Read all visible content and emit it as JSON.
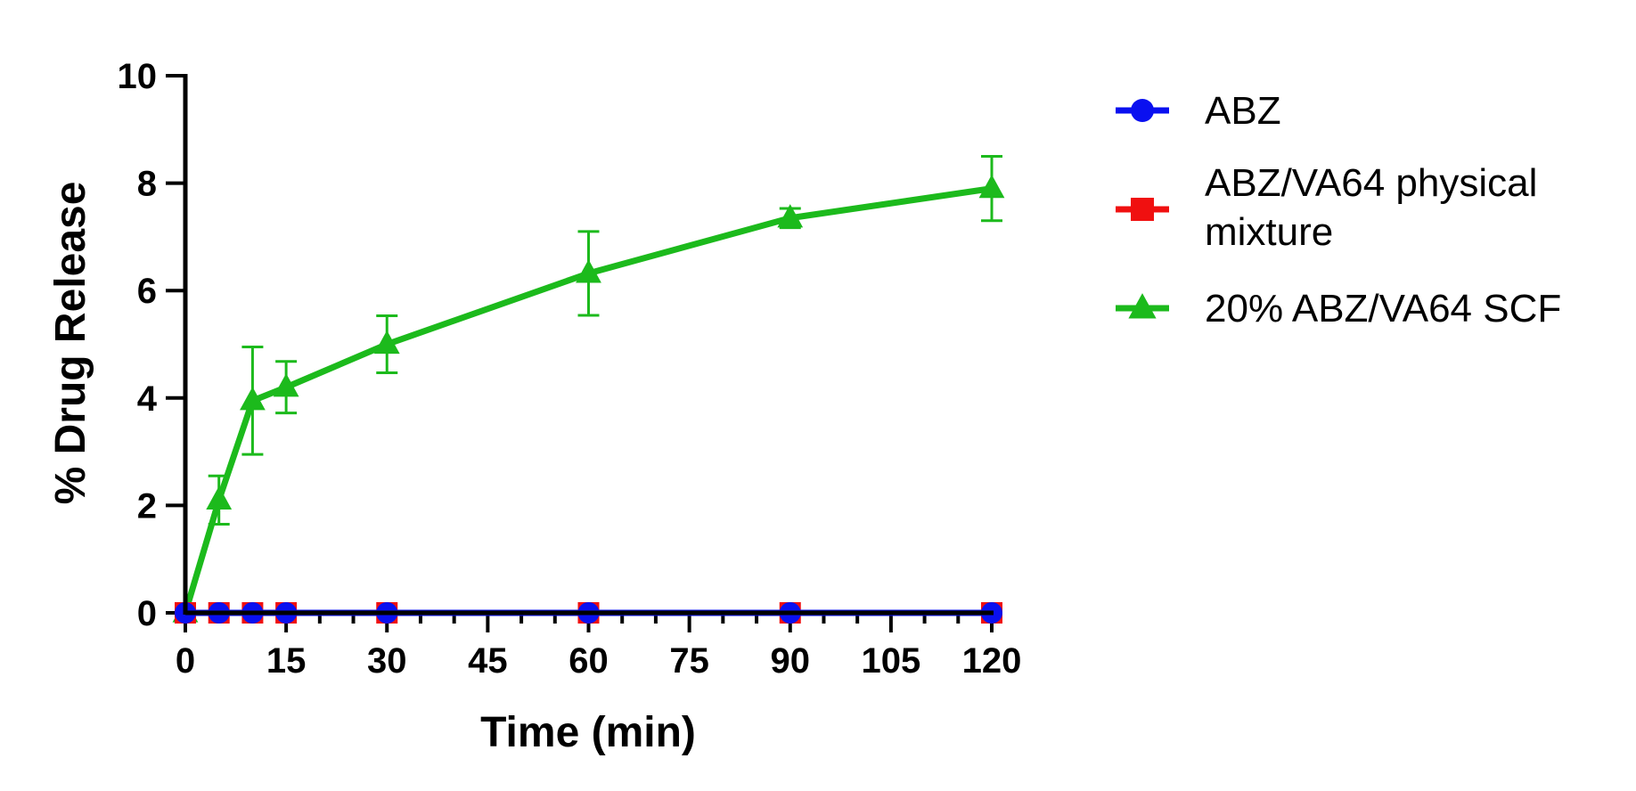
{
  "chart_data": {
    "type": "line",
    "xlabel": "Time (min)",
    "ylabel": "% Drug Release",
    "xlim": [
      0,
      120
    ],
    "ylim": [
      0,
      10
    ],
    "x_ticks": [
      0,
      15,
      30,
      45,
      60,
      75,
      90,
      105,
      120
    ],
    "x_tick_labels": [
      "0",
      "15",
      "30",
      "45",
      "60",
      "75",
      "90",
      "105",
      "120"
    ],
    "y_ticks": [
      0,
      2,
      4,
      6,
      8,
      10
    ],
    "y_tick_labels": [
      "0",
      "2",
      "4",
      "6",
      "8",
      "10"
    ],
    "grid": false,
    "legend_position": "right",
    "series": [
      {
        "name": "ABZ",
        "color": "#0a10f0",
        "marker": "circle",
        "x": [
          0,
          5,
          10,
          15,
          30,
          60,
          90,
          120
        ],
        "y": [
          0,
          0,
          0,
          0,
          0,
          0,
          0,
          0
        ],
        "error": [
          0,
          0,
          0,
          0,
          0,
          0,
          0,
          0
        ]
      },
      {
        "name": "ABZ/VA64 physical mixture",
        "name_lines": [
          "ABZ/VA64 physical",
          "mixture"
        ],
        "color": "#f01010",
        "marker": "square",
        "x": [
          0,
          5,
          10,
          15,
          30,
          60,
          90,
          120
        ],
        "y": [
          0,
          0,
          0,
          0,
          0,
          0,
          0,
          0
        ],
        "error": [
          0,
          0,
          0,
          0,
          0,
          0,
          0,
          0
        ]
      },
      {
        "name": "20% ABZ/VA64 SCF",
        "color": "#1cba1c",
        "marker": "triangle",
        "x": [
          0,
          5,
          10,
          15,
          30,
          60,
          90,
          120
        ],
        "y": [
          0,
          2.1,
          3.95,
          4.2,
          5.0,
          6.32,
          7.35,
          7.9
        ],
        "error": [
          0,
          0.45,
          1.0,
          0.48,
          0.53,
          0.78,
          0.18,
          0.6
        ]
      }
    ]
  }
}
